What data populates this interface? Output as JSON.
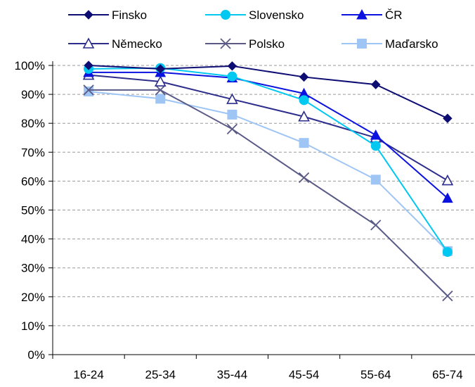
{
  "chart_data": {
    "type": "line",
    "title": "",
    "xlabel": "",
    "ylabel": "",
    "categories": [
      "16-24",
      "25-34",
      "35-44",
      "45-54",
      "55-64",
      "65-74"
    ],
    "y_tick_labels": [
      "0%",
      "10%",
      "20%",
      "30%",
      "40%",
      "50%",
      "60%",
      "70%",
      "80%",
      "90%",
      "100%"
    ],
    "ylim": [
      0,
      100
    ],
    "y_unit": "%",
    "grid": "horizontal dashed",
    "legend_position": "top",
    "series": [
      {
        "name": "Finsko",
        "color": "#0d0d73",
        "marker": "diamond-filled",
        "values": [
          100,
          98.8,
          99.8,
          96,
          93.4,
          81.7
        ]
      },
      {
        "name": "Slovensko",
        "color": "#00c8f0",
        "marker": "circle-filled",
        "values": [
          98.8,
          99.1,
          96.2,
          88,
          72.2,
          35.5
        ]
      },
      {
        "name": "ČR",
        "color": "#0b12e0",
        "marker": "triangle-filled",
        "values": [
          97.6,
          97.6,
          95.7,
          90.3,
          75.9,
          54.1
        ]
      },
      {
        "name": "Německo",
        "color": "#2d2d8c",
        "marker": "triangle-open",
        "values": [
          96.7,
          94.4,
          88.3,
          82.3,
          75,
          60.2
        ]
      },
      {
        "name": "Polsko",
        "color": "#5a5a87",
        "marker": "x",
        "values": [
          91.5,
          91.5,
          78,
          61.2,
          44.8,
          20.3
        ]
      },
      {
        "name": "Maďarsko",
        "color": "#9fc5f5",
        "marker": "square-filled",
        "values": [
          91,
          88.5,
          83,
          73.2,
          60.5,
          35.8
        ]
      }
    ]
  }
}
